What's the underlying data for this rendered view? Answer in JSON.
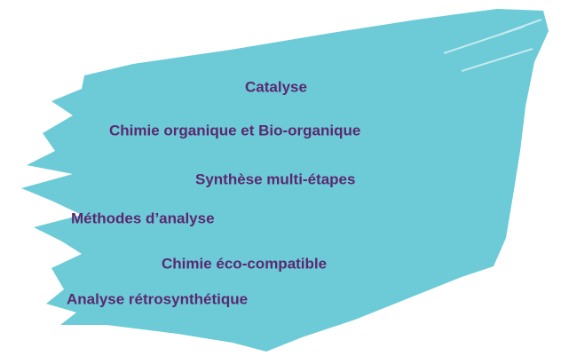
{
  "items": [
    "Catalyse",
    "Chimie organique et Bio-organique",
    "Synthèse multi-étapes",
    "Méthodes d’analyse",
    "Chimie éco-compatible",
    "Analyse rétrosynthétique"
  ]
}
